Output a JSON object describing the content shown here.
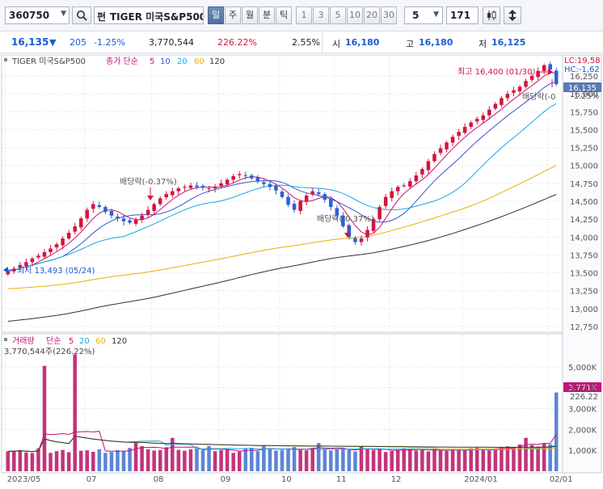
{
  "toolbar": {
    "code": "360750",
    "name_prefix": "펀",
    "name": "TIGER 미국S&P500",
    "period_tabs": [
      "일",
      "주",
      "월",
      "분",
      "틱"
    ],
    "interval_buttons": [
      "1",
      "3",
      "5",
      "10",
      "20",
      "30"
    ],
    "count_select": "5",
    "bars_value": "171"
  },
  "quote": {
    "price": "16,135",
    "arrow": "▼",
    "change": "205",
    "change_pct": "-1.25%",
    "volume": "3,770,544",
    "volume_ratio": "226.22%",
    "turnover": "2.55%",
    "open_label": "시",
    "open_value": "16,180",
    "high_label": "고",
    "high_value": "16,180",
    "low_label": "저",
    "low_value": "16,125",
    "colors": {
      "down": "#1a5bd1",
      "up": "#d4143c"
    }
  },
  "price_panel": {
    "legend": {
      "name": "TIGER 미국S&P500",
      "ma_label": "종가 단순",
      "periods": [
        "5",
        "10",
        "20",
        "60",
        "120"
      ],
      "colors": [
        "#c8107a",
        "#3f52c4",
        "#16a8e0",
        "#e7b100",
        "#333333"
      ]
    },
    "y_ticks": [
      "16,250",
      "16,000",
      "15,750",
      "15,500",
      "15,250",
      "15,000",
      "14,750",
      "14,500",
      "14,250",
      "14,000",
      "13,750",
      "13,500",
      "13,250",
      "13,000",
      "12,750"
    ],
    "right_labels": {
      "lc": "LC:19,58",
      "hc": "HC:-1,62",
      "pct": "-1.25%",
      "last": "16,135"
    },
    "annotations": {
      "high": "최고 16,400 (01/30)",
      "low": "최저 13,493 (05/24)",
      "dividend_1": "배당락(-0.37%)",
      "dividend_2": "배당락(-0.37%)",
      "dividend_3": "배당락(-0"
    }
  },
  "volume_panel": {
    "legend": {
      "name": "거래량",
      "ma_label": "단순",
      "periods": [
        "5",
        "20",
        "60",
        "120"
      ]
    },
    "info": "3,770,544주(226.22%)",
    "y_ticks": [
      "5,000K",
      "4,000K",
      "3,000K",
      "2,000K",
      "1,000K"
    ],
    "right_labels": {
      "last": "3,771K",
      "pct": "226.22"
    }
  },
  "x_axis": {
    "labels": [
      "2023/05",
      "07",
      "08",
      "09",
      "10",
      "11",
      "12",
      "2024/01",
      "02/01"
    ]
  },
  "chart_data": {
    "type": "candlestick",
    "period": "2023/05 – 2024/02",
    "last_close": 16135,
    "high": {
      "value": 16400,
      "date": "01/30"
    },
    "low": {
      "value": 13493,
      "date": "05/24"
    },
    "price_ylim": [
      12750,
      16250
    ],
    "closes": [
      13520,
      13560,
      13610,
      13650,
      13700,
      13740,
      13790,
      13840,
      13900,
      13980,
      14060,
      14150,
      14260,
      14380,
      14460,
      14420,
      14350,
      14300,
      14260,
      14220,
      14200,
      14240,
      14300,
      14380,
      14460,
      14540,
      14600,
      14640,
      14680,
      14700,
      14720,
      14700,
      14690,
      14680,
      14700,
      14750,
      14800,
      14850,
      14880,
      14860,
      14820,
      14780,
      14740,
      14700,
      14650,
      14560,
      14450,
      14380,
      14500,
      14580,
      14640,
      14600,
      14520,
      14420,
      14300,
      14150,
      14000,
      13930,
      13980,
      14100,
      14250,
      14420,
      14560,
      14640,
      14700,
      14720,
      14780,
      14860,
      14950,
      15060,
      15160,
      15240,
      15320,
      15400,
      15470,
      15540,
      15600,
      15650,
      15700,
      15780,
      15860,
      15940,
      16000,
      16050,
      16100,
      16180,
      16250,
      16320,
      16400,
      16340,
      16135
    ],
    "volume_ylim": [
      0,
      5500000
    ],
    "volumes_k": [
      950,
      980,
      1010,
      900,
      870,
      1100,
      5050,
      880,
      960,
      1020,
      910,
      5600,
      980,
      1000,
      930,
      1050,
      880,
      920,
      1010,
      970,
      1120,
      1380,
      1200,
      1050,
      990,
      1010,
      1150,
      1600,
      1020,
      980,
      1050,
      1090,
      1000,
      1210,
      960,
      1010,
      1030,
      880,
      940,
      1080,
      1120,
      960,
      1230,
      1050,
      990,
      1010,
      1090,
      1160,
      1050,
      1000,
      1120,
      1350,
      1040,
      990,
      1060,
      1100,
      1020,
      950,
      1180,
      1090,
      1010,
      1050,
      920,
      970,
      1030,
      1100,
      1060,
      990,
      1020,
      950,
      1080,
      1000,
      970,
      1050,
      1010,
      990,
      1100,
      1120,
      1060,
      1000,
      1080,
      1160,
      1190,
      1140,
      1280,
      1600,
      1250,
      1180,
      1350,
      1290,
      3771
    ]
  }
}
